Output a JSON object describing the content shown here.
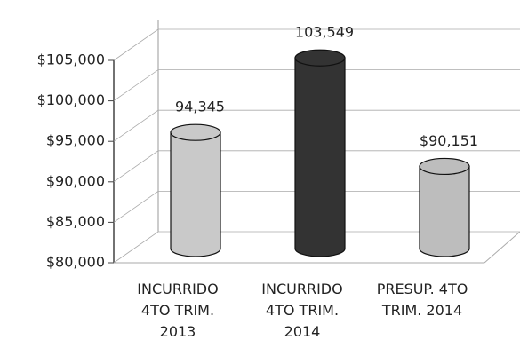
{
  "chart_data": {
    "type": "bar",
    "categories": [
      "INCURRIDO\n4TO TRIM.\n2013",
      "INCURRIDO\n4TO TRIM.\n2014",
      "PRESUP. 4TO\nTRIM. 2014"
    ],
    "series": [
      {
        "values": [
          94345,
          103549,
          90151
        ],
        "value_labels": [
          "94,345",
          "103,549",
          "$90,151"
        ],
        "colors": [
          "#c9c9c9",
          "#333333",
          "#bdbdbd"
        ]
      }
    ],
    "ylim": [
      80000,
      105000
    ],
    "yticks": [
      {
        "value": 80000,
        "label": "$80,000"
      },
      {
        "value": 85000,
        "label": "$85,000"
      },
      {
        "value": 90000,
        "label": "$90,000"
      },
      {
        "value": 95000,
        "label": "$95,000"
      },
      {
        "value": 100000,
        "label": "$100,000"
      },
      {
        "value": 105000,
        "label": "$105,000"
      }
    ],
    "grid": true
  }
}
